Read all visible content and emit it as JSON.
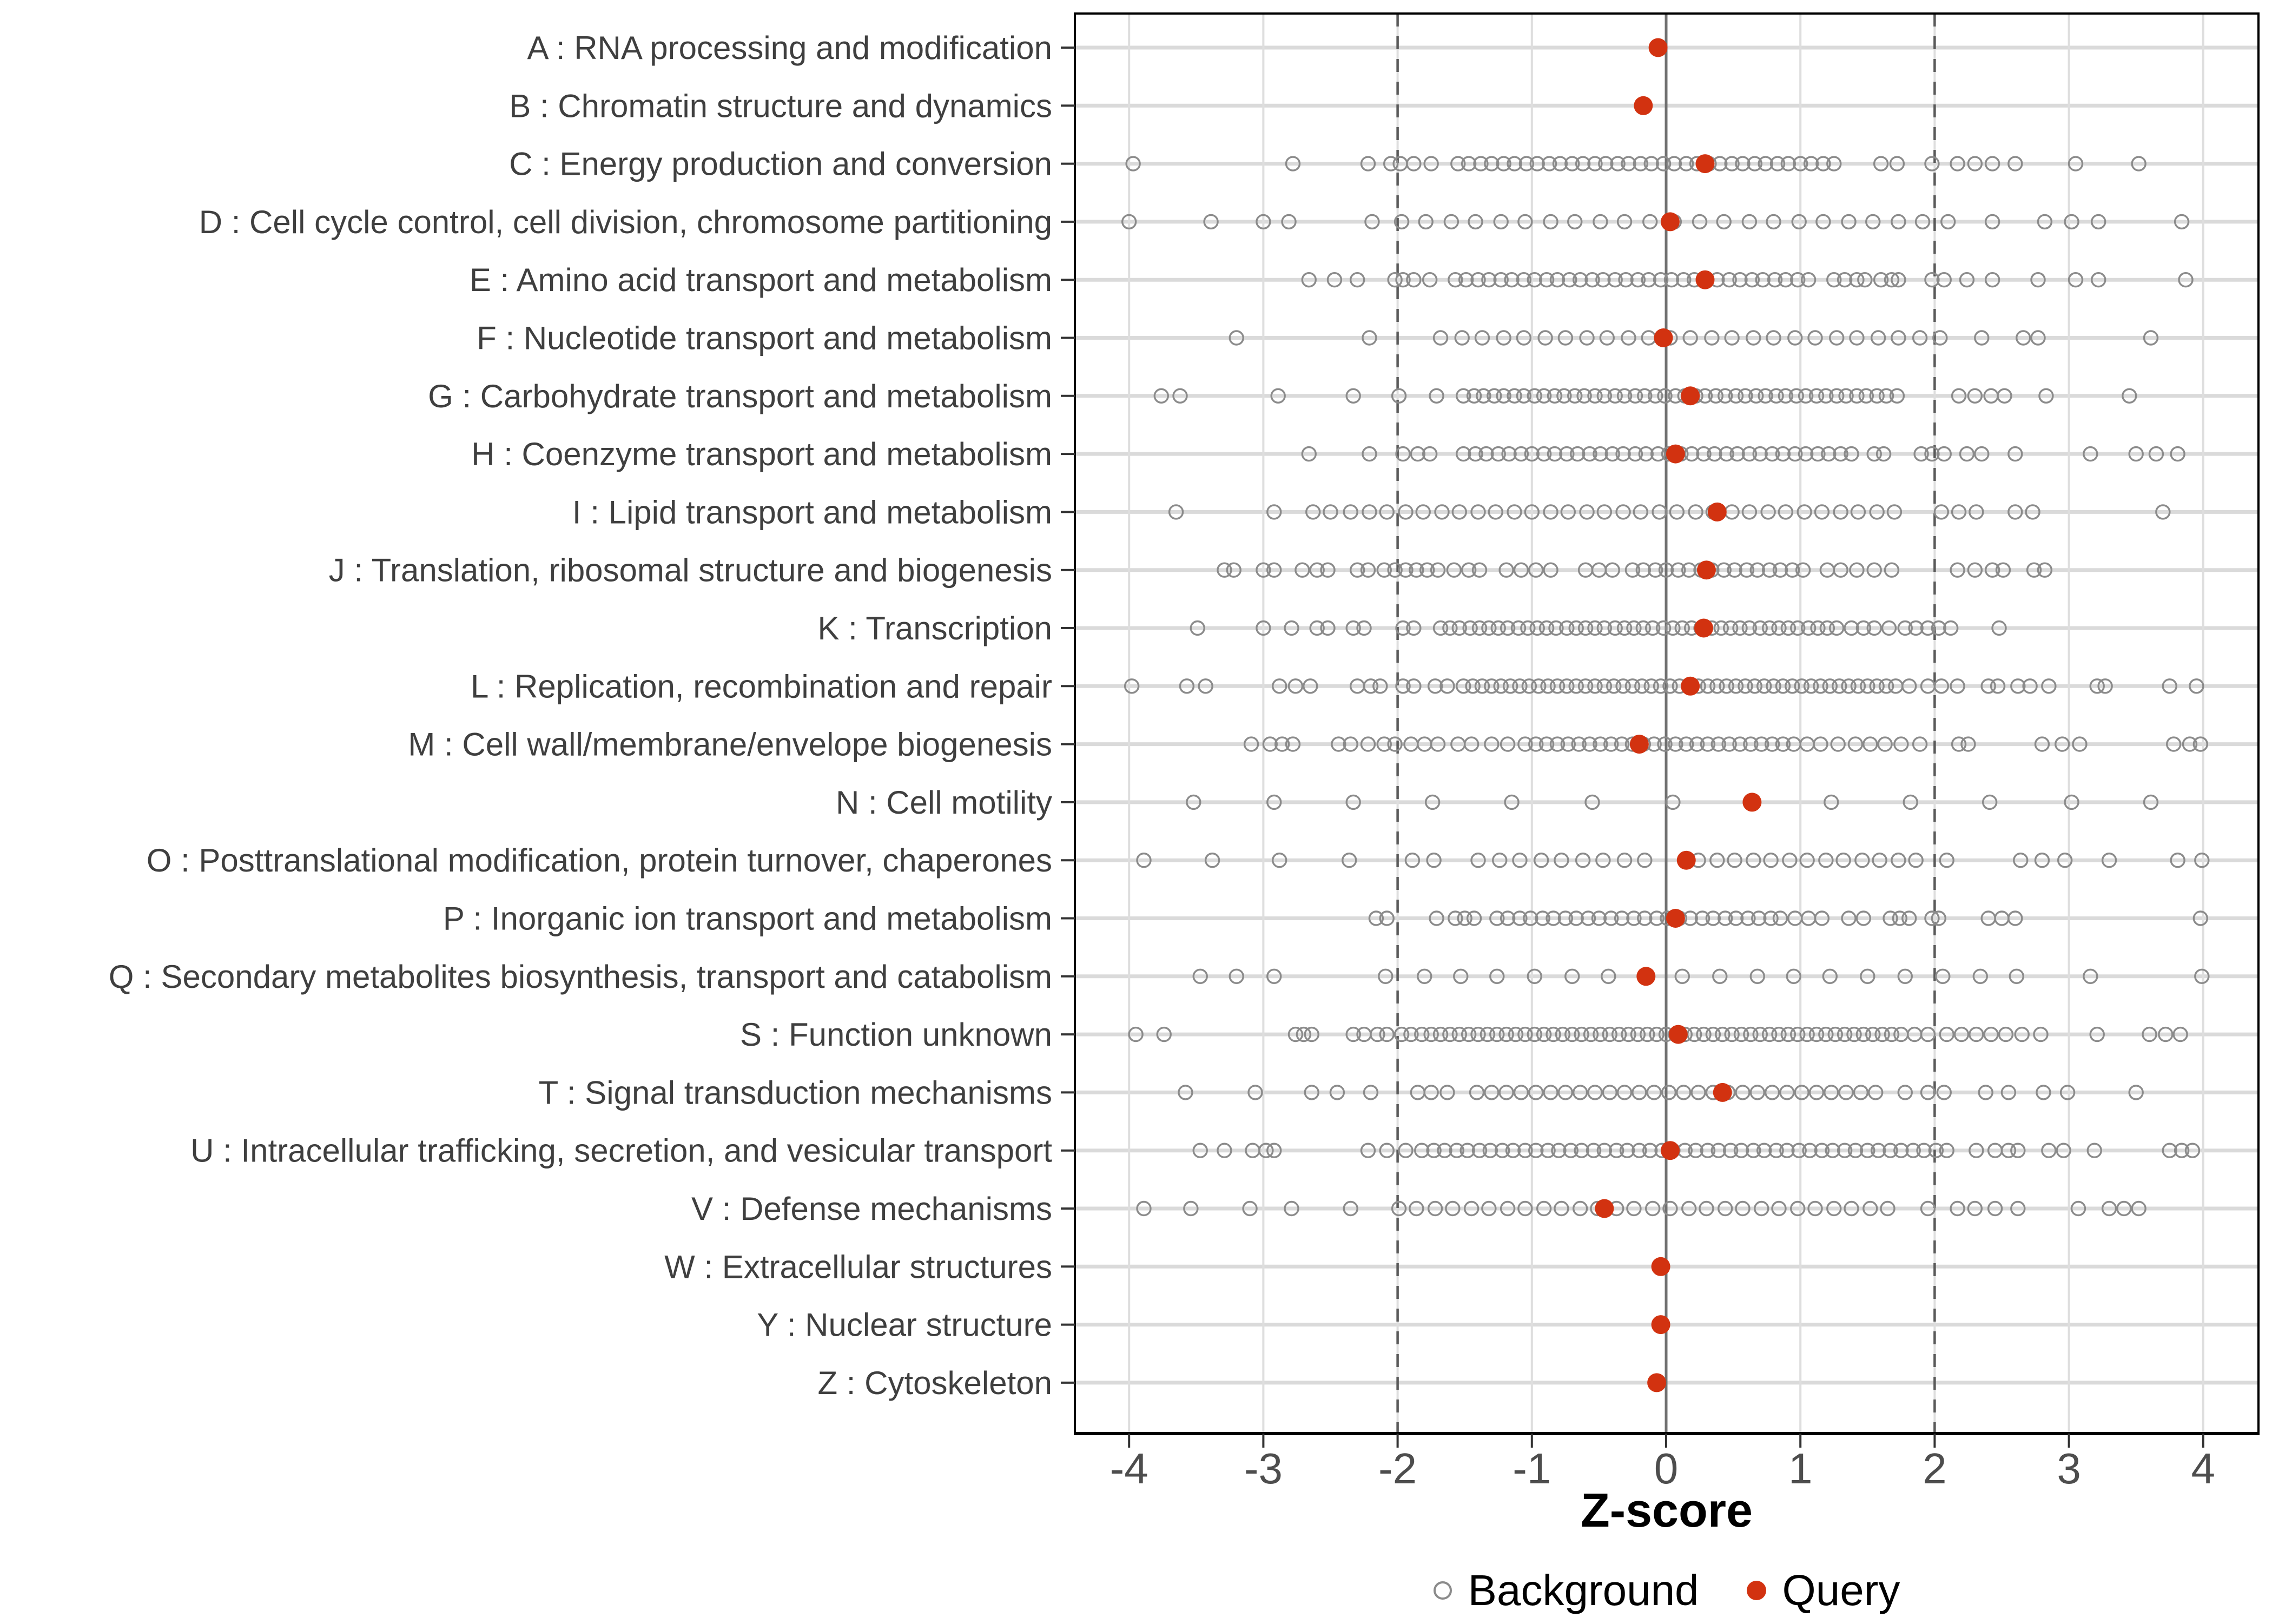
{
  "chart_data": {
    "type": "scatter",
    "variant": "horizontal-strip-dot-plot",
    "title": "",
    "xlabel": "Z-score",
    "x_range": [
      -4.4,
      4.4
    ],
    "x_ticks": [
      -4,
      -3,
      -2,
      -1,
      0,
      1,
      2,
      3,
      4
    ],
    "grid": true,
    "legend_position": "bottom",
    "legend_labels": {
      "background": "Background",
      "query": "Query"
    },
    "reference_lines": {
      "zero_solid": 0,
      "dashed_thresholds": [
        -2,
        2
      ]
    },
    "colors": {
      "query": "#d23210",
      "background_stroke": "#8b8b8b",
      "grid_vertical": "#dedede",
      "grid_row": "#dadada",
      "zero_line": "#707070",
      "threshold_line": "#5a5a5a",
      "panel_border": "#000000",
      "tick_text": "#4d4d4d",
      "label_text": "#3f3f3f"
    },
    "categories": [
      {
        "code": "A",
        "label": "A : RNA processing and modification",
        "query": -0.06,
        "background": []
      },
      {
        "code": "B",
        "label": "B : Chromatin structure and dynamics",
        "query": -0.17,
        "background": []
      },
      {
        "code": "C",
        "label": "C : Energy production and conversion",
        "query": 0.29,
        "background": [
          -3.97,
          -2.78,
          -2.22,
          -2.05,
          -1.98,
          -1.88,
          -1.75,
          -1.55,
          -1.47,
          -1.38,
          -1.3,
          -1.21,
          -1.13,
          -1.04,
          -0.96,
          -0.87,
          -0.79,
          -0.7,
          -0.62,
          -0.53,
          -0.45,
          -0.36,
          -0.28,
          -0.19,
          -0.11,
          -0.02,
          0.06,
          0.15,
          0.23,
          0.32,
          0.4,
          0.49,
          0.57,
          0.66,
          0.74,
          0.83,
          0.91,
          1.0,
          1.08,
          1.17,
          1.25,
          1.6,
          1.72,
          1.98,
          2.17,
          2.3,
          2.43,
          2.6,
          3.05,
          3.52
        ]
      },
      {
        "code": "D",
        "label": "D : Cell cycle control, cell division, chromosome partitioning",
        "query": 0.03,
        "background": [
          -4.0,
          -3.39,
          -3.0,
          -2.81,
          -2.19,
          -1.97,
          -1.79,
          -1.6,
          -1.42,
          -1.23,
          -1.05,
          -0.86,
          -0.68,
          -0.49,
          -0.31,
          -0.12,
          0.06,
          0.25,
          0.43,
          0.62,
          0.8,
          0.99,
          1.17,
          1.36,
          1.54,
          1.73,
          1.91,
          2.1,
          2.43,
          2.82,
          3.02,
          3.22,
          3.84
        ]
      },
      {
        "code": "E",
        "label": "E : Amino acid transport and metabolism",
        "query": 0.29,
        "background": [
          -2.66,
          -2.47,
          -2.3,
          -2.02,
          -1.96,
          -1.88,
          -1.76,
          -1.57,
          -1.49,
          -1.4,
          -1.32,
          -1.23,
          -1.15,
          -1.06,
          -0.98,
          -0.89,
          -0.81,
          -0.72,
          -0.64,
          -0.55,
          -0.47,
          -0.38,
          -0.3,
          -0.21,
          -0.13,
          -0.04,
          0.04,
          0.13,
          0.21,
          0.3,
          0.38,
          0.47,
          0.55,
          0.64,
          0.72,
          0.81,
          0.89,
          0.98,
          1.06,
          1.25,
          1.33,
          1.42,
          1.48,
          1.6,
          1.68,
          1.73,
          1.98,
          2.07,
          2.24,
          2.43,
          2.77,
          3.05,
          3.22,
          3.87
        ]
      },
      {
        "code": "F",
        "label": "F : Nucleotide transport and metabolism",
        "query": -0.02,
        "background": [
          -3.2,
          -2.21,
          -1.68,
          -1.52,
          -1.37,
          -1.21,
          -1.06,
          -0.9,
          -0.75,
          -0.59,
          -0.44,
          -0.28,
          -0.13,
          0.03,
          0.18,
          0.34,
          0.49,
          0.65,
          0.8,
          0.96,
          1.11,
          1.27,
          1.42,
          1.58,
          1.73,
          1.89,
          2.04,
          2.35,
          2.66,
          2.77,
          3.61
        ]
      },
      {
        "code": "G",
        "label": "G : Carbohydrate transport and metabolism",
        "query": 0.18,
        "background": [
          -3.76,
          -3.62,
          -2.89,
          -2.33,
          -1.99,
          -1.71,
          -1.51,
          -1.43,
          -1.36,
          -1.28,
          -1.21,
          -1.13,
          -1.06,
          -0.98,
          -0.91,
          -0.83,
          -0.76,
          -0.68,
          -0.61,
          -0.53,
          -0.46,
          -0.38,
          -0.31,
          -0.23,
          -0.16,
          -0.08,
          -0.01,
          0.07,
          0.14,
          0.22,
          0.29,
          0.37,
          0.44,
          0.52,
          0.59,
          0.67,
          0.74,
          0.82,
          0.89,
          0.97,
          1.04,
          1.12,
          1.19,
          1.27,
          1.34,
          1.42,
          1.49,
          1.57,
          1.64,
          1.72,
          2.18,
          2.3,
          2.42,
          2.52,
          2.83,
          3.45
        ]
      },
      {
        "code": "H",
        "label": "H : Coenzyme transport and metabolism",
        "query": 0.07,
        "background": [
          -2.66,
          -2.21,
          -1.96,
          -1.85,
          -1.76,
          -1.51,
          -1.42,
          -1.34,
          -1.25,
          -1.17,
          -1.08,
          -1.0,
          -0.91,
          -0.83,
          -0.74,
          -0.66,
          -0.57,
          -0.49,
          -0.4,
          -0.32,
          -0.23,
          -0.15,
          -0.06,
          0.02,
          0.11,
          0.19,
          0.28,
          0.36,
          0.45,
          0.53,
          0.62,
          0.7,
          0.79,
          0.87,
          0.96,
          1.04,
          1.13,
          1.21,
          1.3,
          1.38,
          1.55,
          1.62,
          1.9,
          1.98,
          2.07,
          2.24,
          2.35,
          2.6,
          3.16,
          3.5,
          3.65,
          3.81
        ]
      },
      {
        "code": "I",
        "label": "I : Lipid transport and metabolism",
        "query": 0.38,
        "background": [
          -3.65,
          -2.92,
          -2.63,
          -2.5,
          -2.35,
          -2.21,
          -2.08,
          -1.94,
          -1.81,
          -1.67,
          -1.54,
          -1.4,
          -1.27,
          -1.13,
          -1.0,
          -0.86,
          -0.73,
          -0.59,
          -0.46,
          -0.32,
          -0.19,
          -0.05,
          0.08,
          0.22,
          0.35,
          0.49,
          0.62,
          0.76,
          0.89,
          1.03,
          1.16,
          1.3,
          1.43,
          1.57,
          1.7,
          2.05,
          2.18,
          2.31,
          2.6,
          2.73,
          3.7
        ]
      },
      {
        "code": "J",
        "label": "J : Translation, ribosomal structure and biogenesis",
        "query": 0.3,
        "background": [
          -3.29,
          -3.22,
          -3.0,
          -2.92,
          -2.71,
          -2.6,
          -2.52,
          -2.3,
          -2.22,
          -2.1,
          -2.02,
          -1.94,
          -1.86,
          -1.78,
          -1.7,
          -1.58,
          -1.47,
          -1.39,
          -1.19,
          -1.08,
          -0.97,
          -0.86,
          -0.6,
          -0.5,
          -0.4,
          -0.25,
          -0.17,
          -0.08,
          0.0,
          0.09,
          0.17,
          0.26,
          0.34,
          0.43,
          0.51,
          0.6,
          0.68,
          0.77,
          0.85,
          0.94,
          1.02,
          1.2,
          1.3,
          1.42,
          1.55,
          1.68,
          2.17,
          2.3,
          2.43,
          2.51,
          2.74,
          2.82
        ]
      },
      {
        "code": "K",
        "label": "K : Transcription",
        "query": 0.28,
        "background": [
          -3.49,
          -3.0,
          -2.79,
          -2.6,
          -2.52,
          -2.33,
          -2.25,
          -1.96,
          -1.88,
          -1.68,
          -1.61,
          -1.54,
          -1.46,
          -1.39,
          -1.32,
          -1.25,
          -1.18,
          -1.1,
          -1.03,
          -0.96,
          -0.89,
          -0.82,
          -0.74,
          -0.67,
          -0.6,
          -0.53,
          -0.46,
          -0.38,
          -0.31,
          -0.24,
          -0.17,
          -0.1,
          -0.02,
          0.05,
          0.12,
          0.19,
          0.26,
          0.34,
          0.41,
          0.48,
          0.55,
          0.62,
          0.7,
          0.77,
          0.84,
          0.91,
          0.98,
          1.06,
          1.13,
          1.2,
          1.27,
          1.38,
          1.47,
          1.55,
          1.66,
          1.78,
          1.86,
          1.95,
          2.03,
          2.12,
          2.48
        ]
      },
      {
        "code": "L",
        "label": "L : Replication, recombination and repair",
        "query": 0.18,
        "background": [
          -3.98,
          -3.57,
          -3.43,
          -2.88,
          -2.76,
          -2.65,
          -2.3,
          -2.2,
          -2.13,
          -1.96,
          -1.88,
          -1.72,
          -1.63,
          -1.51,
          -1.44,
          -1.37,
          -1.3,
          -1.23,
          -1.16,
          -1.09,
          -1.02,
          -0.95,
          -0.88,
          -0.81,
          -0.74,
          -0.67,
          -0.6,
          -0.53,
          -0.46,
          -0.39,
          -0.32,
          -0.25,
          -0.18,
          -0.11,
          -0.04,
          0.03,
          0.1,
          0.17,
          0.24,
          0.31,
          0.38,
          0.45,
          0.52,
          0.59,
          0.66,
          0.73,
          0.8,
          0.87,
          0.94,
          1.01,
          1.08,
          1.15,
          1.22,
          1.29,
          1.36,
          1.43,
          1.5,
          1.57,
          1.64,
          1.71,
          1.81,
          1.95,
          2.05,
          2.17,
          2.4,
          2.47,
          2.62,
          2.71,
          2.85,
          3.21,
          3.27,
          3.75,
          3.95
        ]
      },
      {
        "code": "M",
        "label": "M : Cell wall/membrane/envelope biogenesis",
        "query": -0.2,
        "background": [
          -3.09,
          -2.95,
          -2.86,
          -2.78,
          -2.44,
          -2.35,
          -2.22,
          -2.1,
          -2.02,
          -1.9,
          -1.8,
          -1.7,
          -1.55,
          -1.45,
          -1.3,
          -1.18,
          -1.05,
          -0.97,
          -0.89,
          -0.81,
          -0.73,
          -0.65,
          -0.57,
          -0.49,
          -0.41,
          -0.33,
          -0.25,
          -0.17,
          -0.09,
          -0.01,
          0.07,
          0.15,
          0.23,
          0.31,
          0.39,
          0.47,
          0.55,
          0.63,
          0.71,
          0.79,
          0.87,
          0.95,
          1.05,
          1.15,
          1.28,
          1.41,
          1.52,
          1.63,
          1.75,
          1.89,
          2.18,
          2.25,
          2.8,
          2.95,
          3.08,
          3.78,
          3.9,
          3.98
        ]
      },
      {
        "code": "N",
        "label": "N : Cell motility",
        "query": 0.64,
        "background": [
          -3.52,
          -2.92,
          -2.33,
          -1.74,
          -1.15,
          -0.55,
          0.05,
          1.23,
          1.82,
          2.41,
          3.02,
          3.61
        ]
      },
      {
        "code": "O",
        "label": "O : Posttranslational modification, protein turnover, chaperones",
        "query": 0.15,
        "background": [
          -3.89,
          -3.38,
          -2.88,
          -2.36,
          -1.89,
          -1.73,
          -1.4,
          -1.24,
          -1.09,
          -0.93,
          -0.78,
          -0.62,
          -0.47,
          -0.31,
          -0.16,
          0.24,
          0.38,
          0.51,
          0.65,
          0.78,
          0.92,
          1.05,
          1.19,
          1.32,
          1.46,
          1.59,
          1.73,
          1.86,
          2.09,
          2.64,
          2.8,
          2.97,
          3.3,
          3.81,
          3.99
        ]
      },
      {
        "code": "P",
        "label": "P : Inorganic ion transport and metabolism",
        "query": 0.07,
        "background": [
          -2.16,
          -2.08,
          -1.71,
          -1.57,
          -1.5,
          -1.43,
          -1.26,
          -1.18,
          -1.09,
          -1.01,
          -0.92,
          -0.84,
          -0.75,
          -0.67,
          -0.58,
          -0.5,
          -0.41,
          -0.33,
          -0.24,
          -0.16,
          -0.07,
          0.01,
          0.1,
          0.18,
          0.27,
          0.35,
          0.44,
          0.52,
          0.61,
          0.69,
          0.78,
          0.85,
          0.96,
          1.06,
          1.16,
          1.36,
          1.47,
          1.67,
          1.74,
          1.81,
          1.98,
          2.03,
          2.4,
          2.5,
          2.6,
          3.98
        ]
      },
      {
        "code": "Q",
        "label": "Q : Secondary metabolites biosynthesis, transport and catabolism",
        "query": -0.15,
        "background": [
          -3.47,
          -3.2,
          -2.92,
          -2.09,
          -1.8,
          -1.53,
          -1.26,
          -0.98,
          -0.7,
          -0.43,
          0.12,
          0.4,
          0.68,
          0.95,
          1.22,
          1.5,
          1.78,
          2.06,
          2.34,
          2.61,
          3.16,
          3.99
        ]
      },
      {
        "code": "S",
        "label": "S : Function unknown",
        "query": 0.09,
        "background": [
          -3.95,
          -3.74,
          -2.76,
          -2.7,
          -2.64,
          -2.33,
          -2.25,
          -2.15,
          -2.08,
          -1.97,
          -1.9,
          -1.82,
          -1.75,
          -1.68,
          -1.61,
          -1.54,
          -1.47,
          -1.4,
          -1.33,
          -1.26,
          -1.19,
          -1.12,
          -1.05,
          -0.98,
          -0.91,
          -0.84,
          -0.77,
          -0.7,
          -0.63,
          -0.56,
          -0.49,
          -0.42,
          -0.35,
          -0.28,
          -0.21,
          -0.14,
          -0.07,
          0.0,
          0.07,
          0.14,
          0.21,
          0.28,
          0.35,
          0.42,
          0.49,
          0.56,
          0.63,
          0.7,
          0.77,
          0.84,
          0.91,
          0.98,
          1.05,
          1.12,
          1.19,
          1.26,
          1.33,
          1.4,
          1.47,
          1.54,
          1.61,
          1.68,
          1.75,
          1.85,
          1.95,
          2.09,
          2.2,
          2.31,
          2.42,
          2.53,
          2.65,
          2.79,
          3.21,
          3.6,
          3.72,
          3.83
        ]
      },
      {
        "code": "T",
        "label": "T : Signal transduction mechanisms",
        "query": 0.42,
        "background": [
          -3.58,
          -3.06,
          -2.64,
          -2.45,
          -2.2,
          -1.85,
          -1.75,
          -1.63,
          -1.41,
          -1.3,
          -1.19,
          -1.08,
          -0.97,
          -0.86,
          -0.75,
          -0.64,
          -0.53,
          -0.42,
          -0.31,
          -0.2,
          -0.09,
          0.02,
          0.13,
          0.24,
          0.35,
          0.46,
          0.57,
          0.68,
          0.79,
          0.9,
          1.01,
          1.12,
          1.23,
          1.34,
          1.45,
          1.56,
          1.78,
          1.95,
          2.07,
          2.38,
          2.55,
          2.81,
          2.99,
          3.5
        ]
      },
      {
        "code": "U",
        "label": "U : Intracellular trafficking, secretion, and vesicular transport",
        "query": 0.03,
        "background": [
          -3.47,
          -3.29,
          -3.08,
          -2.98,
          -2.92,
          -2.22,
          -2.08,
          -1.94,
          -1.82,
          -1.73,
          -1.65,
          -1.56,
          -1.48,
          -1.39,
          -1.31,
          -1.22,
          -1.14,
          -1.05,
          -0.97,
          -0.88,
          -0.8,
          -0.71,
          -0.63,
          -0.54,
          -0.46,
          -0.37,
          -0.29,
          -0.2,
          -0.12,
          -0.03,
          0.05,
          0.14,
          0.22,
          0.31,
          0.39,
          0.48,
          0.56,
          0.65,
          0.73,
          0.82,
          0.9,
          0.99,
          1.07,
          1.16,
          1.24,
          1.33,
          1.41,
          1.5,
          1.58,
          1.67,
          1.75,
          1.84,
          1.92,
          2.01,
          2.09,
          2.31,
          2.45,
          2.55,
          2.62,
          2.85,
          2.96,
          3.19,
          3.75,
          3.84,
          3.92
        ]
      },
      {
        "code": "V",
        "label": "V : Defense mechanisms",
        "query": -0.46,
        "background": [
          -3.89,
          -3.54,
          -3.1,
          -2.79,
          -2.35,
          -1.99,
          -1.86,
          -1.72,
          -1.59,
          -1.45,
          -1.32,
          -1.18,
          -1.05,
          -0.91,
          -0.78,
          -0.64,
          -0.51,
          -0.37,
          -0.24,
          -0.1,
          0.03,
          0.17,
          0.3,
          0.44,
          0.57,
          0.71,
          0.84,
          0.98,
          1.11,
          1.25,
          1.38,
          1.52,
          1.65,
          1.95,
          2.17,
          2.3,
          2.45,
          2.62,
          3.07,
          3.3,
          3.41,
          3.52
        ]
      },
      {
        "code": "W",
        "label": "W : Extracellular structures",
        "query": -0.04,
        "background": []
      },
      {
        "code": "Y",
        "label": "Y : Nuclear structure",
        "query": -0.04,
        "background": []
      },
      {
        "code": "Z",
        "label": "Z : Cytoskeleton",
        "query": -0.07,
        "background": []
      }
    ]
  }
}
